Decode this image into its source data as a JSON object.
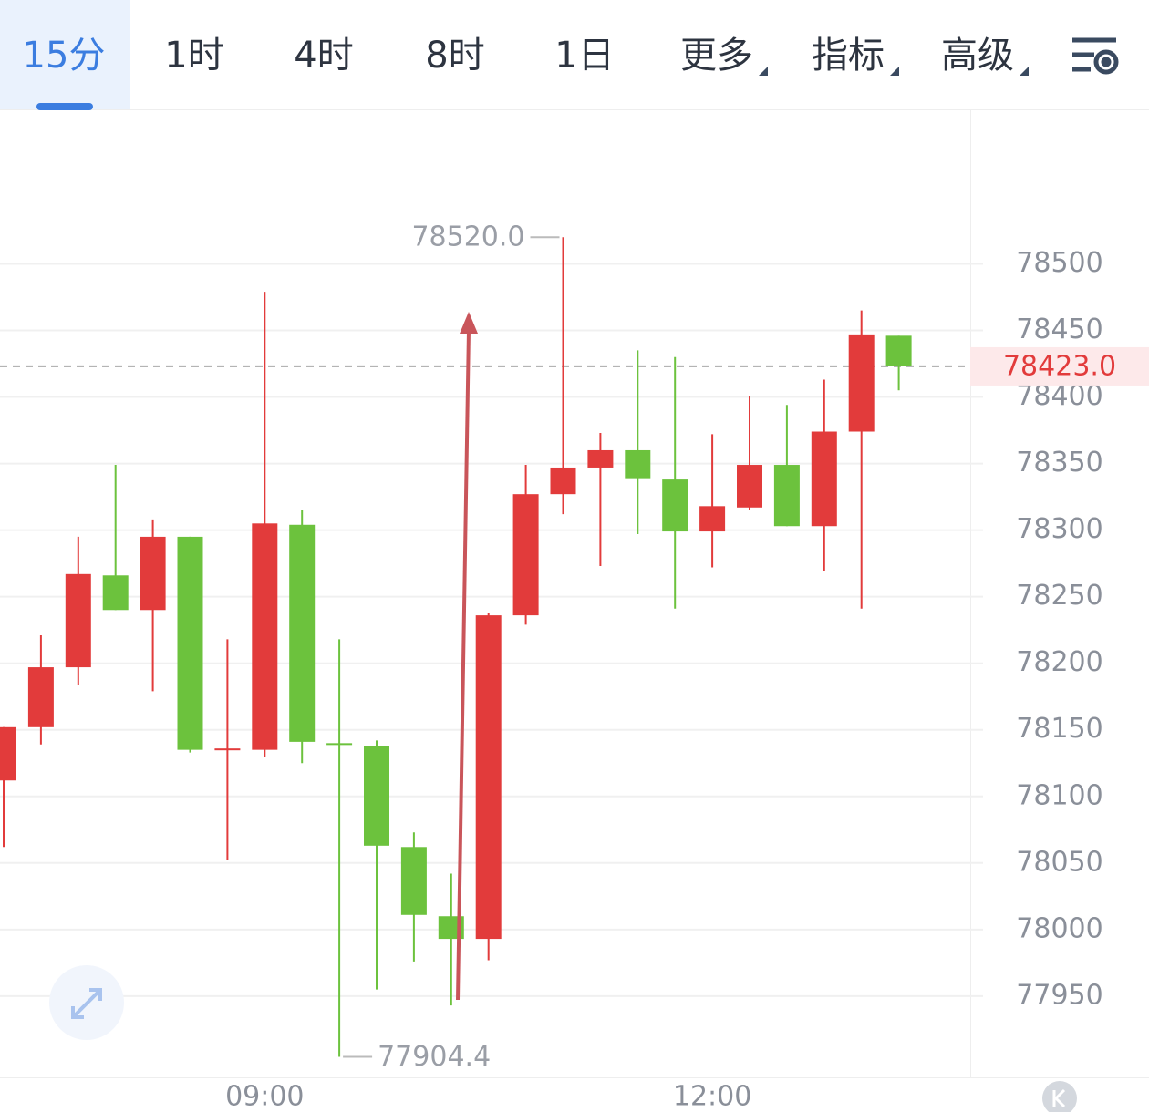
{
  "tabs": [
    "15分",
    "1时",
    "4时",
    "8时",
    "1日",
    "更多",
    "指标",
    "高级"
  ],
  "active_tab": 0,
  "chart_data": {
    "type": "candlestick",
    "categories": [
      null,
      null,
      null,
      null,
      null,
      null,
      null,
      "09:00",
      null,
      null,
      null,
      null,
      null,
      null,
      null,
      null,
      null,
      null,
      null,
      "12:00",
      null,
      null,
      null,
      null,
      null
    ],
    "open": [
      78112,
      78152,
      78197,
      78266,
      78240,
      78295,
      78136,
      78135,
      78304,
      78140,
      78138,
      78062,
      78010,
      77993,
      78236,
      78327,
      78347,
      78360,
      78338,
      78299,
      78317,
      78349,
      78303,
      78374,
      78446
    ],
    "high": [
      78152,
      78221,
      78295,
      78349,
      78308,
      78295,
      78218,
      78479,
      78315,
      78218,
      78142,
      78073,
      78042,
      78238,
      78349,
      78520,
      78373,
      78435,
      78430,
      78372,
      78401,
      78394,
      78413,
      78465,
      78446
    ],
    "low": [
      78062,
      78139,
      78184,
      78240,
      78179,
      78133,
      78052,
      78130,
      78125,
      77904.4,
      77955,
      77976,
      77943,
      77977,
      78229,
      78312,
      78273,
      78297,
      78241,
      78272,
      78315,
      78303,
      78269,
      78241,
      78405
    ],
    "close": [
      78152,
      78197,
      78267,
      78240,
      78295,
      78135,
      78136,
      78305,
      78141,
      78139,
      78063,
      78011,
      77993,
      78236,
      78327,
      78347,
      78360,
      78339,
      78299,
      78318,
      78349,
      78303,
      78374,
      78447,
      78423
    ],
    "up_color": "#e23b3b",
    "down_color": "#6cc23d",
    "ylim": [
      77889,
      78616
    ],
    "yticks": [
      77950,
      78000,
      78050,
      78100,
      78150,
      78200,
      78250,
      78300,
      78350,
      78400,
      78450,
      78500
    ],
    "grid": true,
    "annotations": [
      {
        "value": 78520,
        "label": "78520.0"
      },
      {
        "value": 77904.4,
        "label": "77904.4"
      }
    ],
    "last_price": {
      "value": 78423,
      "label": "78423.0"
    }
  }
}
